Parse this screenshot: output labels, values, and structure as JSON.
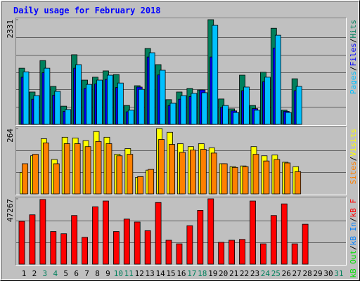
{
  "chart_data": {
    "type": "bar",
    "title": "Daily usage for February 2018",
    "legend_separator": "/",
    "categories": [
      "1",
      "2",
      "3",
      "4",
      "5",
      "6",
      "7",
      "8",
      "9",
      "10",
      "11",
      "12",
      "13",
      "14",
      "15",
      "16",
      "17",
      "18",
      "19",
      "20",
      "21",
      "22",
      "23",
      "24",
      "25",
      "26",
      "27",
      "28",
      "29",
      "30",
      "31"
    ],
    "category_colors": [
      "#000000",
      "#000000",
      "#00805c",
      "#00805c",
      "#000000",
      "#000000",
      "#000000",
      "#000000",
      "#000000",
      "#00805c",
      "#00805c",
      "#000000",
      "#000000",
      "#000000",
      "#000000",
      "#000000",
      "#00805c",
      "#00805c",
      "#000000",
      "#000000",
      "#000000",
      "#000000",
      "#000000",
      "#00805c",
      "#00805c",
      "#000000",
      "#000000",
      "#000000",
      "#000000",
      "#000000",
      "#00805c"
    ],
    "panels": [
      {
        "ylim": [
          0,
          2331
        ],
        "yticks": [
          2331
        ],
        "series": [
          {
            "name": "Hits",
            "color": "#00805c",
            "values": [
              1250,
              720,
              1420,
              845,
              405,
              1550,
              985,
              1050,
              1190,
              1110,
              420,
              860,
              1690,
              1330,
              550,
              720,
              800,
              765,
              2331,
              565,
              345,
              1095,
              420,
              1160,
              2140,
              315,
              1015,
              0,
              null,
              null,
              null
            ]
          },
          {
            "name": "Files",
            "color": "#0000ff",
            "values": [
              1050,
              560,
              1150,
              650,
              290,
              1250,
              800,
              900,
              1000,
              820,
              280,
              830,
              1500,
              1100,
              420,
              560,
              620,
              765,
              1500,
              380,
              300,
              750,
              350,
              950,
              1700,
              290,
              750,
              0,
              null,
              null,
              null
            ]
          },
          {
            "name": "Pages",
            "color": "#00c0ff",
            "values": [
              1170,
              640,
              1250,
              735,
              330,
              1330,
              890,
              985,
              1095,
              920,
              315,
              780,
              1595,
              1205,
              470,
              640,
              690,
              705,
              2205,
              420,
              265,
              830,
              315,
              1050,
              1985,
              265,
              845,
              0,
              null,
              null,
              null
            ]
          }
        ]
      },
      {
        "ylim": [
          0,
          264
        ],
        "yticks": [
          264
        ],
        "series": [
          {
            "name": "Visits",
            "color": "#ffff00",
            "values": [
              87,
              154,
              223,
              139,
              229,
              226,
              215,
              252,
              229,
              160,
              183,
              67,
              96,
              264,
              249,
              203,
              191,
              203,
              186,
              122,
              110,
              113,
              191,
              154,
              157,
              128,
              110,
              0,
              null,
              null,
              null
            ]
          },
          {
            "name": "Sites",
            "color": "#ff8000",
            "values": [
              122,
              160,
              206,
              122,
              203,
              203,
              191,
              212,
              203,
              154,
              160,
              70,
              99,
              220,
              200,
              168,
              177,
              180,
              165,
              122,
              107,
              110,
              160,
              133,
              139,
              125,
              90,
              0,
              null,
              null,
              null
            ]
          }
        ]
      },
      {
        "ylim": [
          0,
          47267
        ],
        "yticks": [
          47267
        ],
        "series": [
          {
            "name": "kB F",
            "color": "#ff0000",
            "values": [
              31000,
              35700,
              46800,
              23600,
              22000,
              35200,
              19400,
              41500,
              45700,
              23600,
              32600,
              30500,
              24200,
              44600,
              17300,
              14700,
              27800,
              38900,
              47267,
              15800,
              17300,
              17900,
              45700,
              14700,
              35200,
              43600,
              14700,
              28900,
              null,
              null,
              null
            ]
          },
          {
            "name": "kB In",
            "color": "#0080ff",
            "values": [
              0,
              0,
              0,
              0,
              0,
              0,
              0,
              0,
              0,
              0,
              0,
              0,
              0,
              0,
              0,
              0,
              0,
              0,
              0,
              0,
              0,
              0,
              0,
              0,
              0,
              0,
              0,
              0,
              null,
              null,
              null
            ]
          },
          {
            "name": "kB Out",
            "color": "#00e000",
            "values": [
              0,
              0,
              0,
              0,
              0,
              0,
              0,
              0,
              0,
              0,
              0,
              0,
              0,
              0,
              0,
              0,
              0,
              0,
              0,
              0,
              0,
              0,
              0,
              0,
              0,
              0,
              0,
              0,
              null,
              null,
              null
            ]
          }
        ]
      }
    ]
  }
}
